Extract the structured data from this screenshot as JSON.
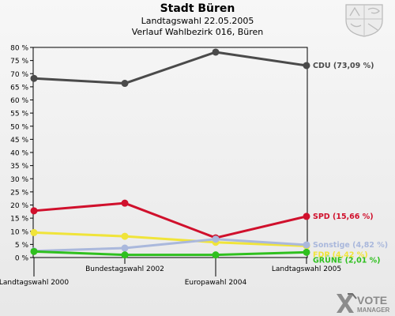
{
  "header": {
    "title": "Stadt Büren",
    "subtitle1": "Landtagswahl 22.05.2005",
    "subtitle2": "Verlauf Wahlbezirk 016, Büren"
  },
  "logo": {
    "line1": "VOTE",
    "line2": "MANAGER"
  },
  "icons": {
    "crest": "coat-of-arms-icon",
    "vote_manager": "vote-manager-logo-icon"
  },
  "chart_data": {
    "type": "line",
    "title": "",
    "xlabel": "",
    "ylabel": "",
    "ylim": [
      0,
      80
    ],
    "yticks": [
      0,
      5,
      10,
      15,
      20,
      25,
      30,
      35,
      40,
      45,
      50,
      55,
      60,
      65,
      70,
      75,
      80
    ],
    "ytick_suffix": " %",
    "grid": false,
    "legend": "end-of-line labels (right)",
    "categories": [
      "Landtagswahl 2000",
      "Bundestagswahl 2002",
      "Europawahl 2004",
      "Landtagswahl 2005"
    ],
    "series": [
      {
        "name": "CDU",
        "end_label": "CDU (73,09 %)",
        "color": "#4a4a4a",
        "values": [
          68.2,
          66.3,
          78.2,
          73.09
        ]
      },
      {
        "name": "SPD",
        "end_label": "SPD (15,66 %)",
        "color": "#d0102c",
        "values": [
          17.8,
          20.7,
          7.5,
          15.66
        ]
      },
      {
        "name": "FDP",
        "end_label": "FDP (4,42 %)",
        "color": "#f0e43a",
        "values": [
          9.5,
          8.1,
          5.8,
          4.42
        ]
      },
      {
        "name": "Sonstige",
        "end_label": "Sonstige (4,82 %)",
        "color": "#aab8dc",
        "values": [
          2.5,
          3.6,
          7.0,
          4.82
        ]
      },
      {
        "name": "GRÜNE",
        "end_label": "GRÜNE (2,01 %)",
        "color": "#2fc01f",
        "values": [
          2.3,
          1.0,
          1.0,
          2.01
        ]
      }
    ]
  }
}
